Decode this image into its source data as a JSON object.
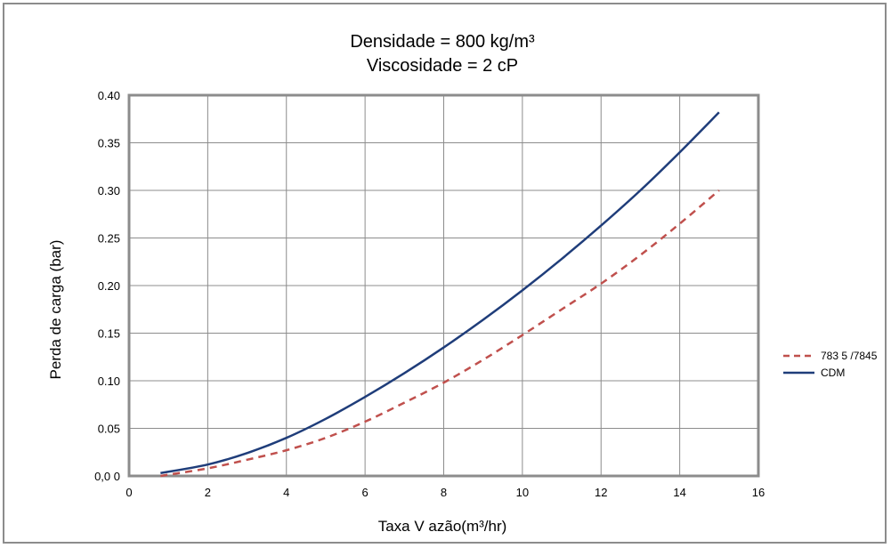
{
  "chart_data": {
    "type": "line",
    "title_lines": [
      "Densidade = 800 kg/m³",
      "Viscosidade = 2 cP"
    ],
    "xlabel": "Taxa V azão(m³/hr)",
    "ylabel": "Perda de carga (bar)",
    "xlim": [
      0,
      16
    ],
    "ylim": [
      0,
      0.4
    ],
    "x_ticks": [
      0,
      2,
      4,
      6,
      8,
      10,
      12,
      14,
      16
    ],
    "x_tick_labels": [
      "0",
      "2",
      "4",
      "6",
      "8",
      "10",
      "12",
      "14",
      "16"
    ],
    "y_ticks": [
      0,
      0.05,
      0.1,
      0.15,
      0.2,
      0.25,
      0.3,
      0.35,
      0.4
    ],
    "y_tick_labels": [
      "0,0 0",
      "0.05",
      "0.10",
      "0.15",
      "0.20",
      "0.25",
      "0.30",
      "0.35",
      "0.40"
    ],
    "grid": true,
    "legend_position": "right",
    "series": [
      {
        "name": "783 5 /7845",
        "color": "#c0504d",
        "dash": true,
        "x": [
          0.8,
          2,
          3,
          4,
          5,
          6,
          7,
          8,
          9,
          10,
          11,
          12,
          13,
          14,
          15
        ],
        "y": [
          0.0,
          0.008,
          0.017,
          0.027,
          0.04,
          0.057,
          0.077,
          0.098,
          0.122,
          0.148,
          0.175,
          0.202,
          0.232,
          0.265,
          0.3
        ]
      },
      {
        "name": "CDM",
        "color": "#1f3d7a",
        "dash": false,
        "x": [
          0.8,
          2,
          3,
          4,
          5,
          6,
          7,
          8,
          9,
          10,
          11,
          12,
          13,
          14,
          15
        ],
        "y": [
          0.003,
          0.012,
          0.024,
          0.04,
          0.06,
          0.083,
          0.108,
          0.135,
          0.164,
          0.195,
          0.228,
          0.263,
          0.3,
          0.34,
          0.382
        ]
      }
    ]
  }
}
